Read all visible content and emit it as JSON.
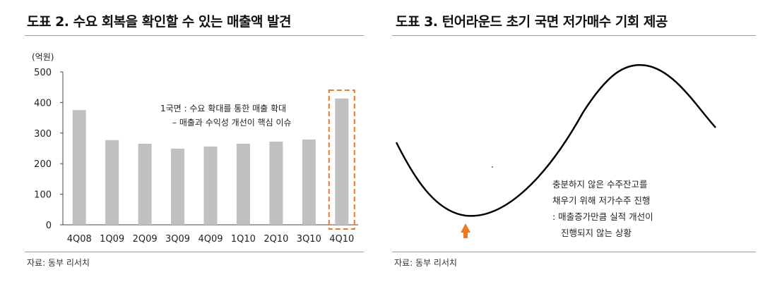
{
  "left": {
    "title": "도표 2. 수요 회복을 확인할 수 있는 매출액 발견",
    "source": "자료: 동부 리서치"
  },
  "right": {
    "title": "도표 3. 턴어라운드 초기 국면 저가매수 기회 제공",
    "source": "자료: 동부 리서치",
    "annotation_lines": [
      "충분하지 않은 수주잔고를",
      "채우기 위해 저가수주 진행",
      ": 매출증가만큼 실적 개선이",
      "진행되지 않는 상황"
    ]
  },
  "colors": {
    "bar": "#c0c0c0",
    "highlight_box": "#f07820",
    "arrow": "#f07820",
    "curve": "#000000"
  },
  "chart_data": [
    {
      "type": "bar",
      "title": "도표 2. 수요 회복을 확인할 수 있는 매출액 발견",
      "ylabel": "(억원)",
      "categories": [
        "4Q08",
        "1Q09",
        "2Q09",
        "3Q09",
        "4Q09",
        "1Q10",
        "2Q10",
        "3Q10",
        "4Q10"
      ],
      "values": [
        375,
        277,
        265,
        249,
        256,
        265,
        272,
        279,
        413
      ],
      "ylim": [
        0,
        500
      ],
      "yticks": [
        0,
        100,
        200,
        300,
        400,
        500
      ],
      "grid": false,
      "highlight_category": "4Q10",
      "annotation": [
        "1국면 : 수요 확대를 통한 매출 확대",
        "– 매출과 수익성 개선이 핵심 이슈"
      ]
    },
    {
      "type": "line",
      "title": "도표 3. 턴어라운드 초기 국면 저가매수 기회 제공",
      "shape": "cycle"
    }
  ]
}
